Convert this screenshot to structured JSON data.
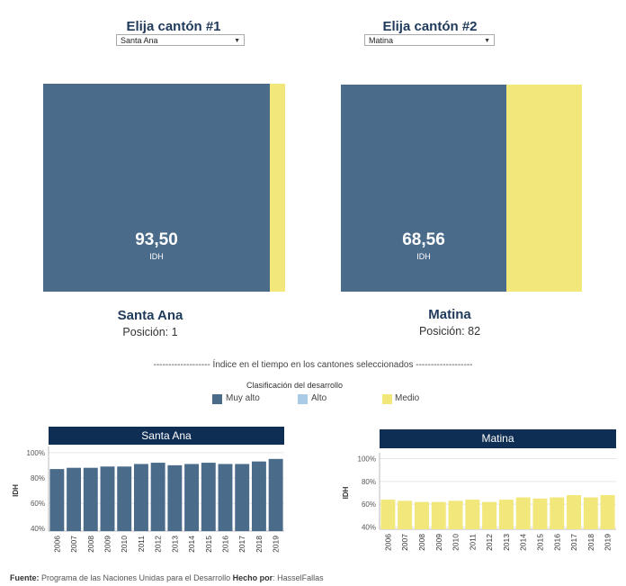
{
  "selectors": [
    {
      "title": "Elija cantón #1",
      "value": "Santa Ana"
    },
    {
      "title": "Elija cantón #2",
      "value": "Matina"
    }
  ],
  "cards": [
    {
      "name": "Santa Ana",
      "position_label": "Posición: 1",
      "idh": "93,50",
      "unit": "IDH"
    },
    {
      "name": "Matina",
      "position_label": "Posición: 82",
      "idh": "68,56",
      "unit": "IDH"
    }
  ],
  "section_title": "------------------- Índice en el tiempo en los cantones seleccionados -------------------",
  "legend": {
    "title": "Clasificación del desarrollo",
    "items": [
      {
        "label": "Muy alto",
        "color": "#4a6b8a"
      },
      {
        "label": "Alto",
        "color": "#a9cbe8"
      },
      {
        "label": "Medio",
        "color": "#f2e77a"
      }
    ]
  },
  "colors": {
    "muy_alto": "#4a6b8a",
    "medio": "#f2e77a",
    "header": "#0e2e53"
  },
  "chart_data": [
    {
      "type": "treemap",
      "title": "Santa Ana",
      "series": [
        {
          "name": "Muy alto",
          "value": 93.5
        },
        {
          "name": "Medio",
          "value": 6.5
        }
      ],
      "label": "93,50 IDH"
    },
    {
      "type": "treemap",
      "title": "Matina",
      "series": [
        {
          "name": "Muy alto",
          "value": 68.56
        },
        {
          "name": "Medio",
          "value": 31.44
        }
      ],
      "label": "68,56 IDH"
    },
    {
      "type": "bar",
      "title": "Santa Ana",
      "ylabel": "IDH",
      "ylim": [
        38,
        102
      ],
      "yticks": [
        "100%",
        "80%",
        "60%",
        "40%"
      ],
      "ytick_values": [
        100,
        80,
        60,
        40
      ],
      "categories": [
        "2006",
        "2007",
        "2008",
        "2009",
        "2010",
        "2011",
        "2012",
        "2013",
        "2014",
        "2015",
        "2016",
        "2017",
        "2018",
        "2019"
      ],
      "values": [
        87,
        88,
        88,
        89,
        89,
        91,
        92,
        90,
        91,
        92,
        91,
        91,
        93,
        95
      ],
      "color": "#4a6b8a"
    },
    {
      "type": "bar",
      "title": "Matina",
      "ylabel": "IDH",
      "ylim": [
        38,
        102
      ],
      "yticks": [
        "100%",
        "80%",
        "60%",
        "40%"
      ],
      "ytick_values": [
        100,
        80,
        60,
        40
      ],
      "categories": [
        "2006",
        "2007",
        "2008",
        "2009",
        "2010",
        "2011",
        "2012",
        "2013",
        "2014",
        "2015",
        "2016",
        "2017",
        "2018",
        "2019"
      ],
      "values": [
        64,
        63,
        62,
        62,
        63,
        64,
        62,
        64,
        66,
        65,
        66,
        68,
        66,
        68
      ],
      "color": "#f2e77a"
    }
  ],
  "footer": {
    "source_label": "Fuente:",
    "source_text": " Programa de las Naciones Unidas para el Desarrollo ",
    "made_label": "Hecho por",
    "made_text": ": HasselFallas"
  }
}
